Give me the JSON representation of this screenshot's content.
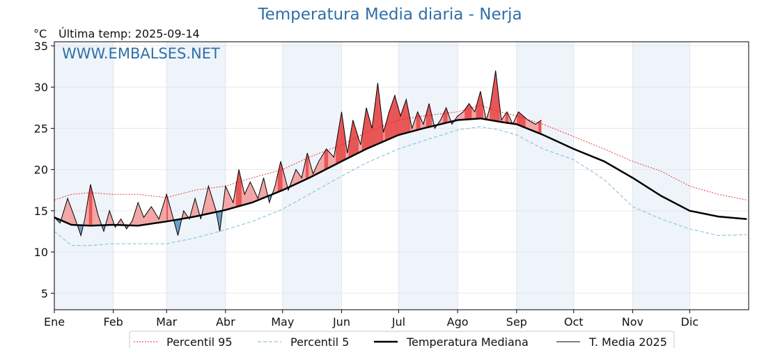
{
  "header": {
    "title": "Temperatura Media diaria - Nerja",
    "unit": "°C",
    "last_temp": "Última temp: 2025-09-14",
    "watermark": "WWW.EMBALSES.NET"
  },
  "colors": {
    "title": "#2f6fa8",
    "p95": "#e8231f",
    "p5": "#8fc6dd",
    "median": "#000000",
    "media2025": "#000000",
    "above_fill": "#f3a6a6",
    "above_fill_strong": "#e85555",
    "below_fill": "#6f9ec8",
    "month_band": "#eef4fa"
  },
  "chart_data": {
    "type": "line",
    "title": "Temperatura Media diaria - Nerja",
    "ylim": [
      3,
      35.5
    ],
    "xlim_days": [
      1,
      366
    ],
    "yticks": [
      5,
      10,
      15,
      20,
      25,
      30,
      35
    ],
    "months": [
      "Ene",
      "Feb",
      "Mar",
      "Abr",
      "May",
      "Jun",
      "Jul",
      "Ago",
      "Sep",
      "Oct",
      "Nov",
      "Dic"
    ],
    "grid": true,
    "legend_position": "bottom",
    "legend": [
      "Percentil 95",
      "Percentil 5",
      "Temperatura Mediana",
      "T. Media 2025"
    ],
    "series": [
      {
        "name": "Percentil 95",
        "style": "dotted-red",
        "x": [
          1,
          10,
          20,
          32,
          45,
          60,
          75,
          91,
          105,
          121,
          135,
          152,
          165,
          182,
          195,
          213,
          225,
          235,
          244,
          258,
          274,
          290,
          305,
          320,
          335,
          350,
          365
        ],
        "y": [
          16.3,
          17.0,
          17.2,
          17.0,
          17.0,
          16.6,
          17.5,
          18.0,
          19.0,
          20.0,
          21.5,
          23.0,
          24.5,
          26.0,
          26.5,
          27.0,
          27.8,
          27.0,
          26.5,
          25.5,
          24.0,
          22.5,
          21.0,
          19.8,
          18.0,
          17.0,
          16.3
        ]
      },
      {
        "name": "Percentil 5",
        "style": "dashed-lightblue",
        "x": [
          1,
          10,
          20,
          32,
          45,
          60,
          75,
          91,
          105,
          121,
          135,
          152,
          165,
          182,
          195,
          213,
          225,
          235,
          244,
          258,
          274,
          290,
          305,
          320,
          335,
          350,
          365
        ],
        "y": [
          12.5,
          10.8,
          10.8,
          11.0,
          11.0,
          11.0,
          11.7,
          12.7,
          13.7,
          15.2,
          17.0,
          19.2,
          20.8,
          22.5,
          23.5,
          24.8,
          25.2,
          24.8,
          24.2,
          22.5,
          21.2,
          18.8,
          15.5,
          14.0,
          12.8,
          12.0,
          12.1
        ]
      },
      {
        "name": "Temperatura Mediana",
        "style": "solid-thick",
        "x": [
          1,
          10,
          20,
          32,
          45,
          60,
          75,
          91,
          105,
          121,
          135,
          152,
          165,
          182,
          195,
          213,
          225,
          235,
          244,
          258,
          274,
          290,
          305,
          320,
          335,
          350,
          365
        ],
        "y": [
          14.2,
          13.3,
          13.2,
          13.3,
          13.2,
          13.7,
          14.3,
          15.1,
          16.0,
          17.5,
          19.0,
          21.0,
          22.5,
          24.2,
          25.0,
          26.0,
          26.2,
          25.8,
          25.5,
          24.2,
          22.5,
          21.0,
          19.0,
          16.8,
          15.0,
          14.3,
          14.0
        ]
      },
      {
        "name": "T. Media 2025",
        "style": "solid-thin",
        "x": [
          1,
          4,
          8,
          12,
          15,
          17,
          20,
          24,
          27,
          30,
          33,
          36,
          39,
          42,
          45,
          48,
          52,
          56,
          60,
          63,
          66,
          69,
          72,
          75,
          78,
          82,
          86,
          88,
          91,
          95,
          98,
          101,
          104,
          108,
          111,
          114,
          117,
          120,
          124,
          128,
          131,
          134,
          137,
          140,
          144,
          148,
          152,
          155,
          158,
          162,
          165,
          168,
          171,
          174,
          177,
          180,
          183,
          186,
          189,
          192,
          195,
          198,
          201,
          204,
          207,
          210,
          213,
          216,
          219,
          222,
          225,
          228,
          230,
          233,
          236,
          239,
          242,
          245,
          250,
          254,
          257
        ],
        "y": [
          14.2,
          13.5,
          16.5,
          14.0,
          12.0,
          14.0,
          18.2,
          14.5,
          12.5,
          15.0,
          13.0,
          14.0,
          12.8,
          13.8,
          16.0,
          14.2,
          15.5,
          14.0,
          17.0,
          14.5,
          12.0,
          15.0,
          14.0,
          16.5,
          14.0,
          18.0,
          15.0,
          12.5,
          18.0,
          16.0,
          20.0,
          17.0,
          18.5,
          16.5,
          19.0,
          16.0,
          18.0,
          21.0,
          17.5,
          20.0,
          19.0,
          22.0,
          19.5,
          21.0,
          22.5,
          21.5,
          27.0,
          22.0,
          26.0,
          23.0,
          27.5,
          25.0,
          30.5,
          24.5,
          27.0,
          29.0,
          26.5,
          28.5,
          25.0,
          27.0,
          25.5,
          28.0,
          25.0,
          26.0,
          27.5,
          25.5,
          26.5,
          27.0,
          28.0,
          27.0,
          29.5,
          26.0,
          27.5,
          32.0,
          26.0,
          27.0,
          25.5,
          27.0,
          26.0,
          25.5,
          26.0
        ]
      }
    ]
  }
}
